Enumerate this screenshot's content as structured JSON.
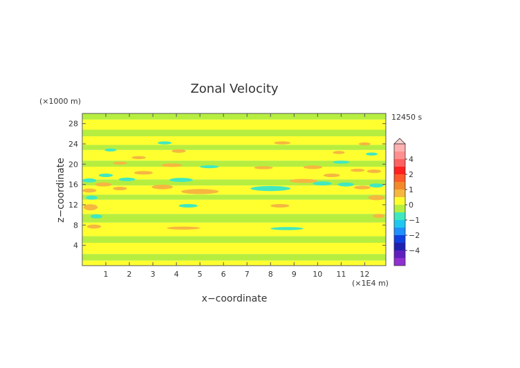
{
  "chart_data": {
    "type": "heatmap",
    "title": "Zonal Velocity",
    "xlabel": "x−coordinate",
    "ylabel": "z−coordinate",
    "x_unit": "(×1E4 m)",
    "y_unit": "(×1000 m)",
    "time_label": "12450 s",
    "xlim": [
      0,
      12.9
    ],
    "ylim": [
      0,
      30
    ],
    "x_ticks": [
      1,
      2,
      3,
      4,
      5,
      6,
      7,
      8,
      9,
      10,
      11,
      12
    ],
    "y_ticks": [
      4,
      8,
      12,
      16,
      20,
      24,
      28
    ],
    "grid": false,
    "colorbar": {
      "placement": "right",
      "tick_labels": [
        "4",
        "2",
        "1",
        "0",
        "−1",
        "−2",
        "−4"
      ],
      "tick_values": [
        4,
        2,
        1,
        0,
        -1,
        -2,
        -4
      ],
      "bins": [
        {
          "min": 5,
          "max": 6,
          "color": "#ffb0b0"
        },
        {
          "min": 4,
          "max": 5,
          "color": "#ff9090"
        },
        {
          "min": 3,
          "max": 4,
          "color": "#ff6060"
        },
        {
          "min": 2,
          "max": 3,
          "color": "#ff2020"
        },
        {
          "min": 1.5,
          "max": 2,
          "color": "#ff5a2a"
        },
        {
          "min": 1,
          "max": 1.5,
          "color": "#f4892a"
        },
        {
          "min": 0.5,
          "max": 1,
          "color": "#f5b740"
        },
        {
          "min": 0,
          "max": 0.5,
          "color": "#ffff30"
        },
        {
          "min": -0.5,
          "max": 0,
          "color": "#b6ee40"
        },
        {
          "min": -1,
          "max": -0.5,
          "color": "#40e8c0"
        },
        {
          "min": -1.5,
          "max": -1,
          "color": "#20c8f0"
        },
        {
          "min": -2,
          "max": -1.5,
          "color": "#2090ff"
        },
        {
          "min": -3,
          "max": -2,
          "color": "#1040e0"
        },
        {
          "min": -4,
          "max": -3,
          "color": "#2020b0"
        },
        {
          "min": -5,
          "max": -4,
          "color": "#6020c0"
        },
        {
          "min": -6,
          "max": -5,
          "color": "#9030d0"
        }
      ]
    },
    "field": {
      "background_bands": [
        {
          "z0": 0,
          "z1": 1,
          "value": 0.2
        },
        {
          "z0": 1,
          "z1": 2.3,
          "value": -0.3
        },
        {
          "z0": 2.3,
          "z1": 4.5,
          "value": 0.2
        },
        {
          "z0": 4.5,
          "z1": 5.8,
          "value": -0.3
        },
        {
          "z0": 5.8,
          "z1": 8.5,
          "value": 0.2
        },
        {
          "z0": 8.5,
          "z1": 10.2,
          "value": -0.3
        },
        {
          "z0": 10.2,
          "z1": 13,
          "value": 0.2
        },
        {
          "z0": 13,
          "z1": 14,
          "value": -0.3
        },
        {
          "z0": 14,
          "z1": 15.8,
          "value": 0.2
        },
        {
          "z0": 15.8,
          "z1": 17,
          "value": -0.3
        },
        {
          "z0": 17,
          "z1": 19.5,
          "value": 0.2
        },
        {
          "z0": 19.5,
          "z1": 20.7,
          "value": -0.3
        },
        {
          "z0": 20.7,
          "z1": 22.8,
          "value": 0.2
        },
        {
          "z0": 22.8,
          "z1": 23.8,
          "value": -0.3
        },
        {
          "z0": 23.8,
          "z1": 25.5,
          "value": 0.2
        },
        {
          "z0": 25.5,
          "z1": 26.8,
          "value": -0.3
        },
        {
          "z0": 26.8,
          "z1": 28.8,
          "value": 0.2
        },
        {
          "z0": 28.8,
          "z1": 30,
          "value": -0.3
        }
      ],
      "features": [
        {
          "x": 0.35,
          "z": 11.5,
          "rx": 0.3,
          "rz": 0.6,
          "value": 0.8
        },
        {
          "x": 0.5,
          "z": 7.7,
          "rx": 0.3,
          "rz": 0.4,
          "value": 0.8
        },
        {
          "x": 0.6,
          "z": 9.7,
          "rx": 0.25,
          "rz": 0.4,
          "value": -0.8
        },
        {
          "x": 0.4,
          "z": 13.4,
          "rx": 0.25,
          "rz": 0.4,
          "value": -0.8
        },
        {
          "x": 0.3,
          "z": 14.8,
          "rx": 0.3,
          "rz": 0.4,
          "value": 0.8
        },
        {
          "x": 0.3,
          "z": 16.8,
          "rx": 0.3,
          "rz": 0.4,
          "value": -0.8
        },
        {
          "x": 0.9,
          "z": 16,
          "rx": 0.35,
          "rz": 0.4,
          "value": 0.8
        },
        {
          "x": 1.6,
          "z": 15.2,
          "rx": 0.3,
          "rz": 0.35,
          "value": 0.8
        },
        {
          "x": 1.0,
          "z": 17.8,
          "rx": 0.3,
          "rz": 0.35,
          "value": -0.8
        },
        {
          "x": 1.9,
          "z": 17.0,
          "rx": 0.35,
          "rz": 0.35,
          "value": -0.8
        },
        {
          "x": 2.6,
          "z": 18.3,
          "rx": 0.4,
          "rz": 0.35,
          "value": 0.8
        },
        {
          "x": 3.4,
          "z": 15.5,
          "rx": 0.45,
          "rz": 0.45,
          "value": 0.8
        },
        {
          "x": 4.2,
          "z": 16.9,
          "rx": 0.5,
          "rz": 0.4,
          "value": -0.8
        },
        {
          "x": 3.8,
          "z": 19.8,
          "rx": 0.45,
          "rz": 0.35,
          "value": 0.8
        },
        {
          "x": 4.1,
          "z": 22.6,
          "rx": 0.3,
          "rz": 0.35,
          "value": 0.8
        },
        {
          "x": 3.5,
          "z": 24.2,
          "rx": 0.3,
          "rz": 0.3,
          "value": -0.8
        },
        {
          "x": 1.6,
          "z": 20.2,
          "rx": 0.3,
          "rz": 0.3,
          "value": 0.8
        },
        {
          "x": 2.4,
          "z": 21.3,
          "rx": 0.3,
          "rz": 0.3,
          "value": 0.8
        },
        {
          "x": 1.2,
          "z": 22.8,
          "rx": 0.25,
          "rz": 0.3,
          "value": -0.8
        },
        {
          "x": 5.0,
          "z": 14.6,
          "rx": 0.8,
          "rz": 0.5,
          "value": 0.8
        },
        {
          "x": 4.5,
          "z": 11.8,
          "rx": 0.4,
          "rz": 0.35,
          "value": -0.8
        },
        {
          "x": 4.3,
          "z": 7.4,
          "rx": 0.7,
          "rz": 0.3,
          "value": 0.8
        },
        {
          "x": 5.4,
          "z": 19.5,
          "rx": 0.4,
          "rz": 0.3,
          "value": -0.8
        },
        {
          "x": 8.0,
          "z": 15.2,
          "rx": 0.85,
          "rz": 0.5,
          "value": -0.8
        },
        {
          "x": 8.4,
          "z": 11.8,
          "rx": 0.4,
          "rz": 0.35,
          "value": 0.8
        },
        {
          "x": 8.7,
          "z": 7.3,
          "rx": 0.7,
          "rz": 0.3,
          "value": -0.8
        },
        {
          "x": 7.7,
          "z": 19.3,
          "rx": 0.4,
          "rz": 0.3,
          "value": 0.8
        },
        {
          "x": 8.5,
          "z": 24.2,
          "rx": 0.35,
          "rz": 0.3,
          "value": 0.8
        },
        {
          "x": 9.4,
          "z": 16.7,
          "rx": 0.6,
          "rz": 0.4,
          "value": 0.8
        },
        {
          "x": 10.2,
          "z": 16.2,
          "rx": 0.4,
          "rz": 0.4,
          "value": -0.8
        },
        {
          "x": 9.8,
          "z": 19.4,
          "rx": 0.4,
          "rz": 0.35,
          "value": 0.8
        },
        {
          "x": 10.6,
          "z": 17.8,
          "rx": 0.35,
          "rz": 0.35,
          "value": 0.8
        },
        {
          "x": 11.2,
          "z": 16.0,
          "rx": 0.35,
          "rz": 0.4,
          "value": -0.8
        },
        {
          "x": 11.9,
          "z": 15.4,
          "rx": 0.35,
          "rz": 0.35,
          "value": 0.8
        },
        {
          "x": 11.0,
          "z": 20.4,
          "rx": 0.35,
          "rz": 0.3,
          "value": -0.8
        },
        {
          "x": 11.7,
          "z": 18.8,
          "rx": 0.3,
          "rz": 0.3,
          "value": 0.8
        },
        {
          "x": 12.5,
          "z": 13.4,
          "rx": 0.35,
          "rz": 0.5,
          "value": 0.8
        },
        {
          "x": 12.5,
          "z": 15.8,
          "rx": 0.3,
          "rz": 0.4,
          "value": -0.8
        },
        {
          "x": 12.6,
          "z": 9.8,
          "rx": 0.25,
          "rz": 0.4,
          "value": 0.8
        },
        {
          "x": 12.4,
          "z": 18.6,
          "rx": 0.3,
          "rz": 0.35,
          "value": 0.8
        },
        {
          "x": 12.3,
          "z": 22.0,
          "rx": 0.25,
          "rz": 0.3,
          "value": -0.8
        },
        {
          "x": 12.0,
          "z": 24.0,
          "rx": 0.25,
          "rz": 0.3,
          "value": 0.8
        },
        {
          "x": 10.9,
          "z": 22.3,
          "rx": 0.25,
          "rz": 0.3,
          "value": 0.8
        }
      ]
    }
  }
}
